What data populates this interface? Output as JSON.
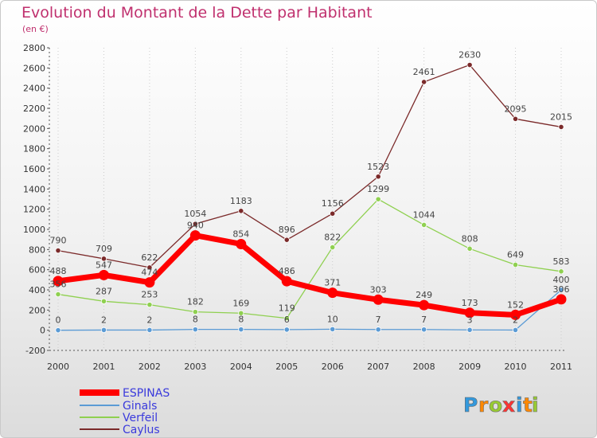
{
  "chart_data": {
    "type": "line",
    "title": "Evolution du Montant de la Dette par Habitant",
    "subtitle": "(en €)",
    "x": [
      "2000",
      "2001",
      "2002",
      "2003",
      "2004",
      "2005",
      "2006",
      "2007",
      "2008",
      "2009",
      "2010",
      "2011"
    ],
    "ylim": [
      -200,
      2800
    ],
    "yticks": [
      -200,
      0,
      200,
      400,
      600,
      800,
      1000,
      1200,
      1400,
      1600,
      1800,
      2000,
      2200,
      2400,
      2600,
      2800
    ],
    "grid": "vertical dotted",
    "legend_position": "bottom-left",
    "series": [
      {
        "name": "ESPINAS",
        "color": "#ff0000",
        "values": [
          488,
          547,
          474,
          940,
          854,
          486,
          371,
          303,
          249,
          173,
          152,
          306
        ]
      },
      {
        "name": "Ginals",
        "color": "#5b9bd5",
        "values": [
          0,
          2,
          2,
          8,
          8,
          6,
          10,
          7,
          7,
          3,
          2,
          400
        ]
      },
      {
        "name": "Verfeil",
        "color": "#8fd050",
        "values": [
          356,
          287,
          253,
          182,
          169,
          119,
          822,
          1299,
          1044,
          808,
          649,
          583
        ]
      },
      {
        "name": "Caylus",
        "color": "#7b2a2a",
        "values": [
          790,
          709,
          622,
          1054,
          1183,
          896,
          1156,
          1523,
          2461,
          2630,
          2095,
          2015
        ]
      }
    ]
  },
  "logo": {
    "letters": [
      "P",
      "r",
      "o",
      "x",
      "i",
      "t",
      "i"
    ],
    "colors": [
      "#3399dd",
      "#ff8800",
      "#99cc33",
      "#ff3333",
      "#3399dd",
      "#ff8800",
      "#99cc33"
    ]
  }
}
